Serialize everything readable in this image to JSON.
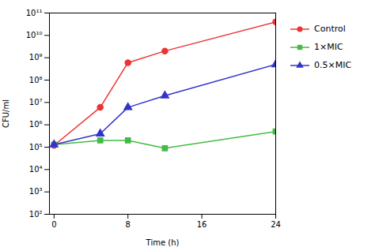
{
  "chart_data": {
    "type": "line",
    "x": [
      0,
      5,
      8,
      12,
      24
    ],
    "series": [
      {
        "name": "Control",
        "color": "#EE3333",
        "marker": "circle",
        "values": [
          120000,
          6000000,
          600000000,
          2000000000,
          40000000000
        ]
      },
      {
        "name": "1×MIC",
        "color": "#44BB44",
        "marker": "square",
        "values": [
          130000,
          200000,
          200000,
          90000,
          500000
        ]
      },
      {
        "name": "0.5×MIC",
        "color": "#3333CC",
        "marker": "triangle",
        "values": [
          130000,
          400000,
          6000000,
          20000000,
          500000000
        ]
      }
    ],
    "xlabel": "Time (h)",
    "ylabel": "CFU/ml",
    "xlim": [
      -0.5,
      24
    ],
    "xticks": [
      0,
      8,
      16,
      24
    ],
    "ylim": [
      100,
      100000000000
    ],
    "yticks": [
      {
        "value": 100,
        "label": "10²"
      },
      {
        "value": 1000,
        "label": "10³"
      },
      {
        "value": 10000,
        "label": "10⁴"
      },
      {
        "value": 100000,
        "label": "10⁵"
      },
      {
        "value": 1000000,
        "label": "10⁶"
      },
      {
        "value": 10000000,
        "label": "10⁷"
      },
      {
        "value": 100000000,
        "label": "10⁸"
      },
      {
        "value": 1000000000,
        "label": "10⁹"
      },
      {
        "value": 10000000000,
        "label": "10¹⁰"
      },
      {
        "value": 100000000000,
        "label": "10¹¹"
      }
    ],
    "log": "y",
    "grid": false,
    "legend": "right"
  }
}
